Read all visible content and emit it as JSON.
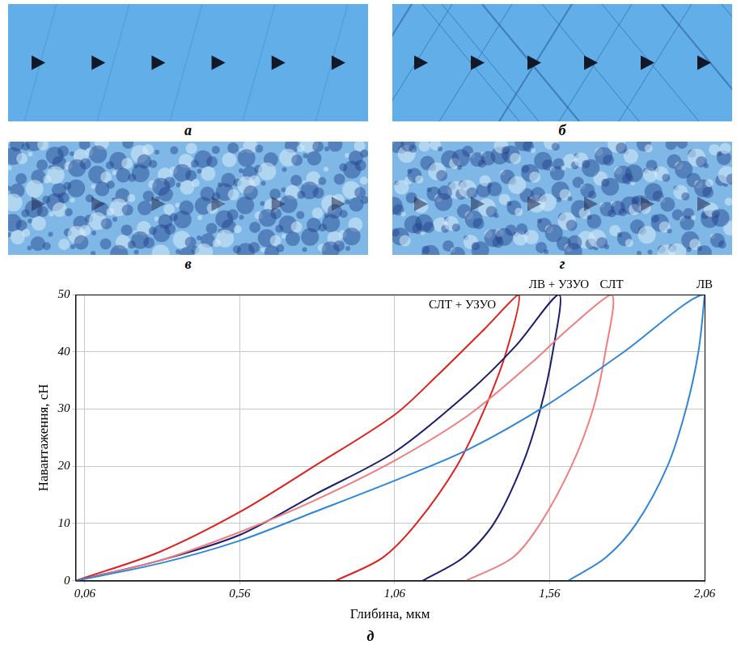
{
  "panel_labels": [
    "а",
    "б",
    "в",
    "г"
  ],
  "chart_panel_label": "д",
  "chart_data": {
    "type": "line",
    "x_label": "Глибина, мкм",
    "y_label": "Навантаження, сН",
    "xlim": [
      0.03,
      2.06
    ],
    "xticks": [
      {
        "value": 0.06,
        "label": "0,06"
      },
      {
        "value": 0.56,
        "label": "0,56"
      },
      {
        "value": 1.06,
        "label": "1,06"
      },
      {
        "value": 1.56,
        "label": "1,56"
      },
      {
        "value": 2.06,
        "label": "2,06"
      }
    ],
    "ylim": [
      0,
      50
    ],
    "yticks": [
      0,
      10,
      20,
      30,
      40,
      50
    ],
    "grid": true,
    "series": [
      {
        "name": "ЛВ",
        "color": "#2f86d8",
        "x": [
          0.03,
          0.3,
          0.56,
          0.8,
          1.06,
          1.3,
          1.56,
          1.8,
          2.06,
          2.04,
          2.0,
          1.94,
          1.84,
          1.74,
          1.62
        ],
        "values": [
          0,
          3,
          7,
          12,
          17.5,
          23,
          31,
          40,
          50,
          40,
          30,
          20,
          10,
          4,
          0
        ]
      },
      {
        "name": "СЛТ",
        "color": "#f07e7e",
        "x": [
          0.03,
          0.3,
          0.56,
          0.8,
          1.06,
          1.3,
          1.5,
          1.62,
          1.76,
          1.74,
          1.7,
          1.63,
          1.53,
          1.44,
          1.29
        ],
        "values": [
          0,
          3.5,
          8.5,
          14,
          21,
          29,
          38,
          44,
          50,
          40,
          30,
          20,
          10,
          4,
          0
        ]
      },
      {
        "name": "ЛВ + УЗУО",
        "color": "#1b1f6e",
        "x": [
          0.03,
          0.3,
          0.56,
          0.8,
          1.06,
          1.3,
          1.45,
          1.59,
          1.57,
          1.53,
          1.47,
          1.38,
          1.28,
          1.15
        ],
        "values": [
          0,
          3.5,
          8,
          15,
          22.5,
          33,
          41,
          50,
          40,
          30,
          20,
          10,
          4,
          0
        ]
      },
      {
        "name": "СЛТ + УЗУО",
        "color": "#e0201e",
        "x": [
          0.03,
          0.3,
          0.56,
          0.8,
          1.06,
          1.2,
          1.35,
          1.46,
          1.42,
          1.35,
          1.26,
          1.13,
          1.02,
          0.87
        ],
        "values": [
          0,
          5,
          12,
          20,
          29,
          36,
          44,
          50,
          40,
          30,
          20,
          10,
          4,
          0
        ]
      }
    ]
  }
}
